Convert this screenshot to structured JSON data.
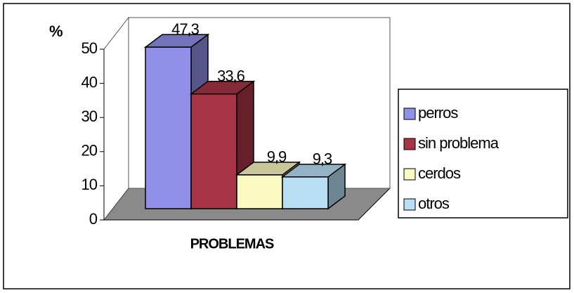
{
  "chart_data": {
    "type": "bar3d",
    "y_label": "%",
    "x_label": "PROBLEMAS",
    "categories": [
      null
    ],
    "series": [
      {
        "name": "perros",
        "color": "#9090e8",
        "values": [
          47.3
        ],
        "value_labels": [
          "47,3"
        ]
      },
      {
        "name": "sin problema",
        "color": "#a83546",
        "values": [
          33.6
        ],
        "value_labels": [
          "33,6"
        ]
      },
      {
        "name": "cerdos",
        "color": "#fbf8c0",
        "values": [
          9.9
        ],
        "value_labels": [
          "9,9"
        ]
      },
      {
        "name": "otros",
        "color": "#b8def4",
        "values": [
          9.3
        ],
        "value_labels": [
          "9,3"
        ]
      }
    ],
    "ylim": [
      0,
      50
    ],
    "yticks": [
      0,
      10,
      20,
      30,
      40,
      50
    ],
    "grid": false,
    "legend": "right"
  }
}
